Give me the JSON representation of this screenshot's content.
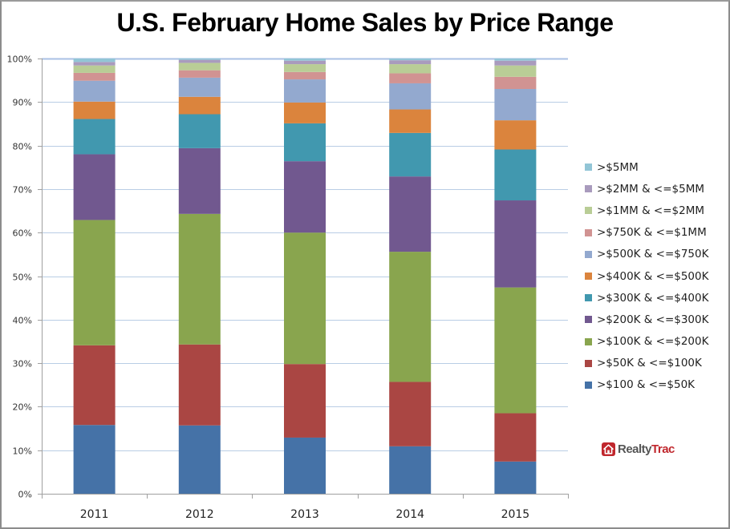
{
  "chart_data": {
    "type": "bar",
    "stacked": "percent",
    "title": "U.S. February Home Sales by Price Range",
    "xlabel": "",
    "ylabel": "",
    "categories": [
      "2011",
      "2012",
      "2013",
      "2014",
      "2015"
    ],
    "ylim": [
      0,
      100
    ],
    "yticks": [
      "0%",
      "10%",
      "20%",
      "30%",
      "40%",
      "50%",
      "60%",
      "70%",
      "80%",
      "90%",
      "100%"
    ],
    "grid": true,
    "legend_position": "right",
    "series": [
      {
        "name": ">$100 & <=$50K",
        "color": "#4572a7",
        "values": [
          15.8,
          15.7,
          12.9,
          10.9,
          7.4
        ]
      },
      {
        "name": ">$50K & <=$100K",
        "color": "#aa4643",
        "values": [
          18.3,
          18.6,
          16.9,
          14.8,
          11.1
        ]
      },
      {
        "name": ">$100K & <=$200K",
        "color": "#89a54e",
        "values": [
          28.8,
          30.0,
          30.2,
          29.9,
          28.9
        ]
      },
      {
        "name": ">$200K & <=$300K",
        "color": "#71588f",
        "values": [
          15.1,
          15.1,
          16.4,
          17.3,
          20.0
        ]
      },
      {
        "name": ">$300K & <=$400K",
        "color": "#4198af",
        "values": [
          8.1,
          7.8,
          8.7,
          10.0,
          11.7
        ]
      },
      {
        "name": ">$400K & <=$500K",
        "color": "#db843d",
        "values": [
          4.0,
          4.0,
          4.8,
          5.4,
          6.7
        ]
      },
      {
        "name": ">$500K & <=$750K",
        "color": "#93a9cf",
        "values": [
          4.8,
          4.4,
          5.3,
          6.0,
          7.2
        ]
      },
      {
        "name": ">$750K & <=$1MM",
        "color": "#d19392",
        "values": [
          1.8,
          1.7,
          1.7,
          2.3,
          2.8
        ]
      },
      {
        "name": ">$1MM & <=$2MM",
        "color": "#b9cd96",
        "values": [
          1.7,
          1.7,
          1.8,
          2.1,
          2.6
        ]
      },
      {
        "name": ">$2MM & <=$5MM",
        "color": "#a99bbd",
        "values": [
          0.8,
          0.7,
          0.8,
          0.9,
          1.1
        ]
      },
      {
        "name": ">$5MM",
        "color": "#92c5d6",
        "values": [
          0.8,
          0.3,
          0.5,
          0.4,
          0.5
        ]
      }
    ]
  },
  "logo": {
    "part1": "Realty",
    "part2": "Trac"
  },
  "colors": {
    "gridline": "#b9cde5",
    "axis": "#a0a0a0",
    "logo_red": "#c0272d"
  }
}
